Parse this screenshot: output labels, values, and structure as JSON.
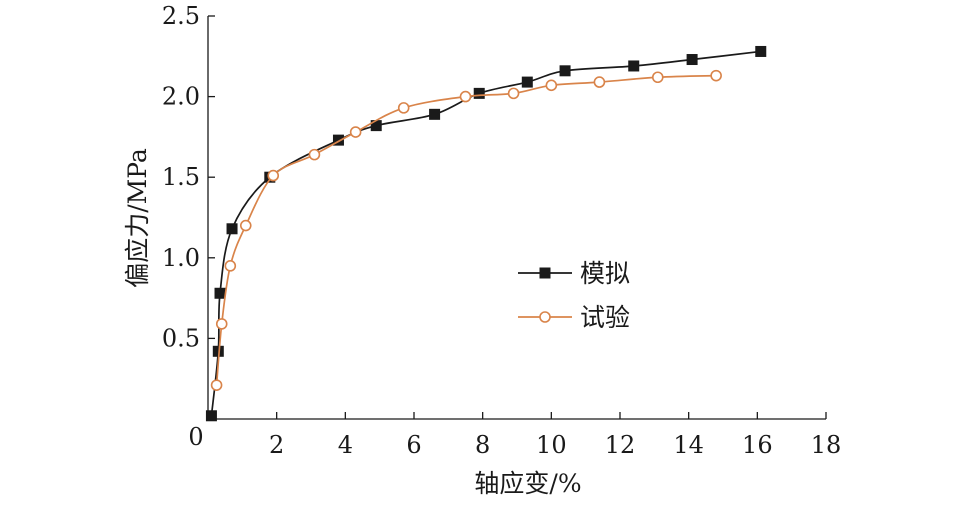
{
  "chart_data": {
    "type": "line",
    "title": "",
    "xlabel": "轴应变/%",
    "ylabel": "偏应力/MPa",
    "xlim": [
      0,
      18
    ],
    "ylim": [
      0,
      2.5
    ],
    "x_ticks": [
      0,
      2,
      4,
      6,
      8,
      10,
      12,
      14,
      16,
      18
    ],
    "y_ticks": [
      0.5,
      1.0,
      1.5,
      2.0,
      2.5
    ],
    "x_tick_labels": [
      "0",
      "2",
      "4",
      "6",
      "8",
      "10",
      "12",
      "14",
      "16",
      "18"
    ],
    "y_tick_labels": [
      "0.5",
      "1.0",
      "1.5",
      "2.0",
      "2.5"
    ],
    "grid": false,
    "legend_position": "center-right",
    "series": [
      {
        "name": "模拟",
        "marker": "filled-square",
        "color": "#1a1a1a",
        "x": [
          0.1,
          0.3,
          0.35,
          0.7,
          1.8,
          3.8,
          4.9,
          6.6,
          7.9,
          9.3,
          10.4,
          12.4,
          14.1,
          16.1
        ],
        "y": [
          0.02,
          0.42,
          0.78,
          1.18,
          1.5,
          1.73,
          1.82,
          1.89,
          2.02,
          2.09,
          2.16,
          2.19,
          2.23,
          2.28
        ]
      },
      {
        "name": "试验",
        "marker": "open-circle",
        "color": "#d9844a",
        "x": [
          0.25,
          0.4,
          0.65,
          1.1,
          1.9,
          3.1,
          4.3,
          5.7,
          7.5,
          8.9,
          10.0,
          11.4,
          13.1,
          14.8
        ],
        "y": [
          0.21,
          0.59,
          0.95,
          1.2,
          1.51,
          1.64,
          1.78,
          1.93,
          2.0,
          2.02,
          2.07,
          2.09,
          2.12,
          2.13
        ]
      }
    ]
  }
}
